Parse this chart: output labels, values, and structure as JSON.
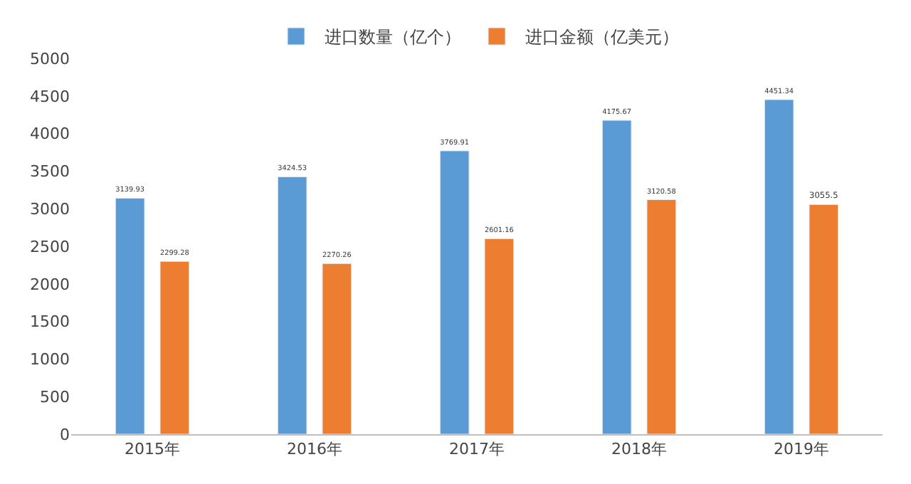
{
  "chart_data": {
    "type": "bar",
    "categories": [
      "2015年",
      "2016年",
      "2017年",
      "2018年",
      "2019年"
    ],
    "series": [
      {
        "name": "进口数量（亿个）",
        "color": "#5b9bd5",
        "values": [
          3139.93,
          3424.53,
          3769.91,
          4175.67,
          4451.34
        ]
      },
      {
        "name": "进口金额（亿美元）",
        "color": "#ed7d31",
        "values": [
          2299.28,
          2270.26,
          2601.16,
          3120.58,
          3055.5
        ]
      }
    ],
    "ylim": [
      0,
      5000
    ],
    "yticks": [
      0,
      500,
      1000,
      1500,
      2000,
      2500,
      3000,
      3500,
      4000,
      4500,
      5000
    ],
    "data_labels": true,
    "legend": "top",
    "grid": false
  }
}
